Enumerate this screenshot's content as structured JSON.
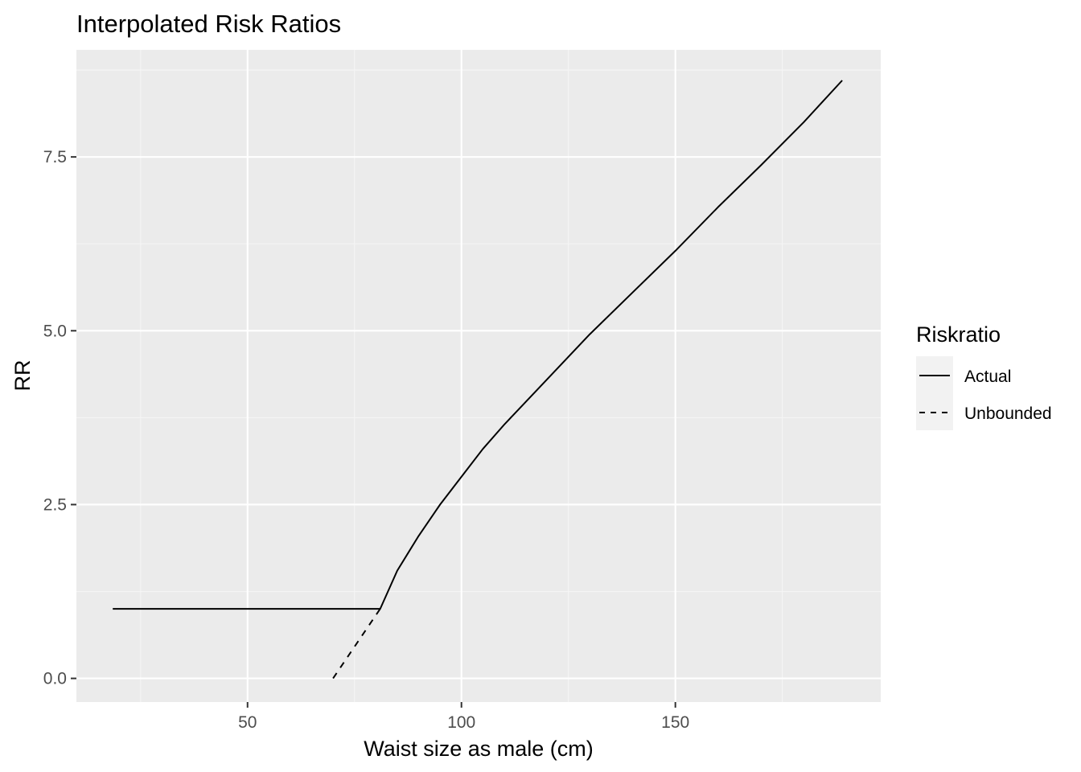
{
  "chart_data": {
    "type": "line",
    "title": "Interpolated Risk Ratios",
    "xlabel": "Waist size as male (cm)",
    "ylabel": "RR",
    "xlim": [
      10,
      198
    ],
    "ylim": [
      -0.34,
      9.04
    ],
    "x_ticks": [
      {
        "value": 50,
        "label": "50"
      },
      {
        "value": 100,
        "label": "100"
      },
      {
        "value": 150,
        "label": "150"
      }
    ],
    "y_ticks": [
      {
        "value": 0,
        "label": "0.0"
      },
      {
        "value": 2.5,
        "label": "2.5"
      },
      {
        "value": 5,
        "label": "5.0"
      },
      {
        "value": 7.5,
        "label": "7.5"
      }
    ],
    "x_minor": [
      25,
      75,
      125,
      175
    ],
    "y_minor": [
      1.25,
      3.75,
      6.25,
      8.75
    ],
    "grid": true,
    "legend": {
      "title": "Riskratio",
      "position": "right",
      "entries": [
        {
          "label": "Actual",
          "linetype": "solid"
        },
        {
          "label": "Unbounded",
          "linetype": "dashed"
        }
      ]
    },
    "series": [
      {
        "name": "Actual",
        "linetype": "solid",
        "color": "#000000",
        "x": [
          18.5,
          81,
          85,
          90,
          95,
          100,
          105,
          110,
          120,
          130,
          140,
          150,
          160,
          170,
          180,
          189
        ],
        "y": [
          1.0,
          1.0,
          1.55,
          2.05,
          2.5,
          2.9,
          3.3,
          3.65,
          4.3,
          4.95,
          5.55,
          6.15,
          6.78,
          7.38,
          8.0,
          8.6
        ]
      },
      {
        "name": "Unbounded",
        "linetype": "dashed",
        "color": "#000000",
        "x": [
          70,
          81
        ],
        "y": [
          0.0,
          1.0
        ]
      }
    ]
  },
  "colors": {
    "panel_background": "#ebebeb",
    "grid_major": "#ffffff",
    "grid_minor": "#f5f5f5",
    "legend_key_background": "#f2f2f2",
    "line": "#000000"
  }
}
